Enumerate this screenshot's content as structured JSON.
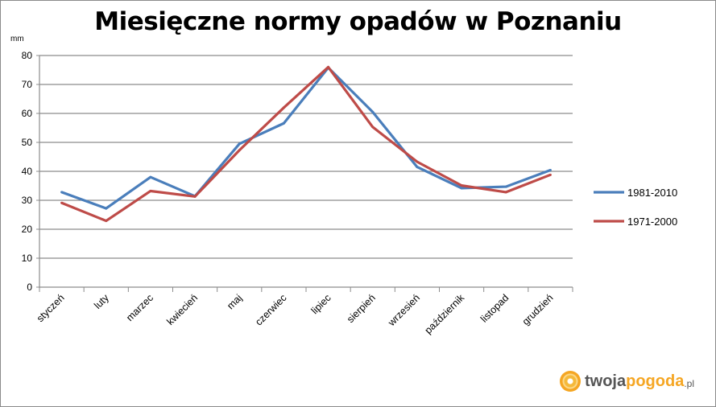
{
  "chart_data": {
    "type": "line",
    "title": "Miesięczne normy opadów w Poznaniu",
    "ylabel": "mm",
    "xlabel": "",
    "ylim": [
      0,
      80
    ],
    "yticks": [
      0,
      10,
      20,
      30,
      40,
      50,
      60,
      70,
      80
    ],
    "grid": true,
    "legend": "right",
    "categories": [
      "styczeń",
      "luty",
      "marzec",
      "kwiecień",
      "maj",
      "czerwiec",
      "lipiec",
      "sierpień",
      "wrzesień",
      "październik",
      "listopad",
      "grudzień"
    ],
    "series": [
      {
        "name": "1981-2010",
        "color": "#4a7ebb",
        "values": [
          32.8,
          27.2,
          38.0,
          31.4,
          49.5,
          56.6,
          75.8,
          60.5,
          41.5,
          34.2,
          34.7,
          40.4
        ]
      },
      {
        "name": "1971-2000",
        "color": "#be4b48",
        "values": [
          29.1,
          22.9,
          33.2,
          31.3,
          47.3,
          62.0,
          76.0,
          55.3,
          43.3,
          35.1,
          32.8,
          38.8
        ]
      }
    ]
  },
  "logo": {
    "part1": "twoja",
    "part2": "pogoda",
    "part3": ".pl"
  }
}
